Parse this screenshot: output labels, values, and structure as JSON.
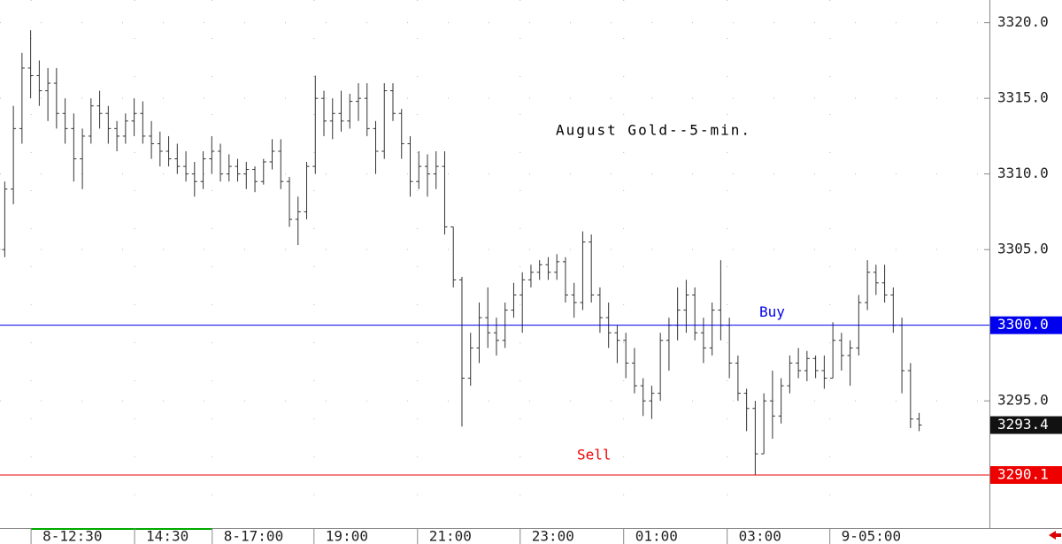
{
  "chart_data": {
    "type": "ohlc",
    "title": "August Gold--5-min.",
    "color": "#333333",
    "grid": true,
    "ylim": [
      3287,
      3321.5
    ],
    "yticks": [
      {
        "value": 3295,
        "label": "3295.0"
      },
      {
        "value": 3305,
        "label": "3305.0"
      },
      {
        "value": 3310,
        "label": "3310.0"
      },
      {
        "value": 3315,
        "label": "3315.0"
      },
      {
        "value": 3320,
        "label": "3320.0"
      }
    ],
    "xlim": [
      -0.5,
      114.2
    ],
    "xticks": [
      {
        "value": 3.1,
        "label": "8-12:30"
      },
      {
        "value": 15.1,
        "label": "14:30"
      },
      {
        "value": 24.1,
        "label": "8-17:00"
      },
      {
        "value": 35.9,
        "label": "19:00"
      },
      {
        "value": 47.9,
        "label": "21:00"
      },
      {
        "value": 59.8,
        "label": "23:00"
      },
      {
        "value": 71.8,
        "label": "01:00"
      },
      {
        "value": 83.8,
        "label": "03:00"
      },
      {
        "value": 95.7,
        "label": "9-05:00"
      }
    ],
    "levels": [
      {
        "name": "Buy",
        "value": 3300,
        "label": "3300.0",
        "color": "#0000ee"
      },
      {
        "name": "Sell",
        "value": 3290.1,
        "label": "3290.1",
        "color": "#ee0000"
      }
    ],
    "last": {
      "value": 3293.4,
      "label": "3293.4"
    },
    "ohlc": [
      [
        3305,
        3309.5,
        3304.5,
        3309
      ],
      [
        3309,
        3314.5,
        3308,
        3313
      ],
      [
        3313,
        3318,
        3312,
        3317
      ],
      [
        3317,
        3319.5,
        3315,
        3316.5
      ],
      [
        3316.5,
        3317.5,
        3314.5,
        3315.5
      ],
      [
        3315.5,
        3317,
        3313.5,
        3316
      ],
      [
        3316,
        3317,
        3313,
        3314
      ],
      [
        3314,
        3315,
        3312,
        3313
      ],
      [
        3313,
        3314,
        3309.5,
        3311
      ],
      [
        3311,
        3313,
        3309,
        3312.5
      ],
      [
        3312.5,
        3315,
        3312,
        3314.5
      ],
      [
        3314.5,
        3315.5,
        3313,
        3314
      ],
      [
        3314,
        3314.5,
        3312,
        3313
      ],
      [
        3313,
        3313.5,
        3311.5,
        3312.5
      ],
      [
        3312.5,
        3314,
        3312,
        3313.5
      ],
      [
        3313.5,
        3315,
        3312.5,
        3314
      ],
      [
        3314,
        3314.8,
        3312,
        3312.5
      ],
      [
        3312.5,
        3313.5,
        3311,
        3312
      ],
      [
        3312,
        3312.8,
        3310.5,
        3311.5
      ],
      [
        3311.5,
        3312.5,
        3310.5,
        3311
      ],
      [
        3311,
        3312,
        3310,
        3310.5
      ],
      [
        3310.5,
        3311.5,
        3309.5,
        3310
      ],
      [
        3310,
        3310.8,
        3308.5,
        3309.5
      ],
      [
        3309.5,
        3311.5,
        3309,
        3311
      ],
      [
        3311,
        3312.5,
        3310,
        3311.5
      ],
      [
        3311.5,
        3312,
        3309.5,
        3310
      ],
      [
        3310,
        3311.3,
        3309.5,
        3310.5
      ],
      [
        3310.5,
        3311,
        3309.5,
        3310
      ],
      [
        3310,
        3310.8,
        3309,
        3310.3
      ],
      [
        3310.3,
        3310.5,
        3308.8,
        3309.5
      ],
      [
        3309.5,
        3311,
        3309.3,
        3310.8
      ],
      [
        3310.8,
        3312.3,
        3310.3,
        3311.5
      ],
      [
        3311.5,
        3312.3,
        3309,
        3309.5
      ],
      [
        3309.5,
        3309.8,
        3306.5,
        3307
      ],
      [
        3307,
        3308.5,
        3305.3,
        3307.5
      ],
      [
        3307.5,
        3310.8,
        3307,
        3310.5
      ],
      [
        3310.5,
        3316.5,
        3310,
        3315
      ],
      [
        3315,
        3315.5,
        3312.5,
        3313.5
      ],
      [
        3313.5,
        3315,
        3312.3,
        3314
      ],
      [
        3314,
        3315.5,
        3312.8,
        3313.5
      ],
      [
        3313.5,
        3315.3,
        3313,
        3314.8
      ],
      [
        3314.8,
        3316,
        3313.5,
        3315
      ],
      [
        3315,
        3316,
        3312.5,
        3313
      ],
      [
        3313,
        3313.5,
        3310,
        3311.5
      ],
      [
        3311.5,
        3316,
        3311,
        3315.5
      ],
      [
        3315.5,
        3316,
        3313.5,
        3314
      ],
      [
        3314,
        3314.3,
        3311,
        3312
      ],
      [
        3312,
        3312.5,
        3308.5,
        3309.5
      ],
      [
        3309.5,
        3311.5,
        3309,
        3310.5
      ],
      [
        3310.5,
        3311.3,
        3308.5,
        3310
      ],
      [
        3310,
        3311.5,
        3309,
        3310.5
      ],
      [
        3310.5,
        3311.5,
        3306,
        3306.5
      ],
      [
        3306.5,
        3306.5,
        3302.5,
        3303
      ],
      [
        3303,
        3303.2,
        3293.3,
        3296.5
      ],
      [
        3296.5,
        3299.5,
        3296,
        3298.5
      ],
      [
        3298.5,
        3301.5,
        3297.5,
        3300.5
      ],
      [
        3300.5,
        3302.5,
        3298.5,
        3299.5
      ],
      [
        3299.5,
        3300.5,
        3298,
        3299
      ],
      [
        3299,
        3301.5,
        3298.5,
        3301
      ],
      [
        3301,
        3302.8,
        3300.5,
        3302
      ],
      [
        3302,
        3303.5,
        3299.5,
        3303
      ],
      [
        3303,
        3304,
        3302.5,
        3303.5
      ],
      [
        3303.5,
        3304.3,
        3303,
        3304
      ],
      [
        3304,
        3304.5,
        3303,
        3303.5
      ],
      [
        3303.5,
        3304.7,
        3303,
        3304.2
      ],
      [
        3304.2,
        3304.5,
        3301.5,
        3302
      ],
      [
        3302,
        3302.8,
        3300.5,
        3301.5
      ],
      [
        3301.5,
        3306.2,
        3301,
        3305.5
      ],
      [
        3305.5,
        3306,
        3301.5,
        3302
      ],
      [
        3302,
        3302.5,
        3299.5,
        3300.5
      ],
      [
        3300.5,
        3301.5,
        3298.5,
        3299.5
      ],
      [
        3299.5,
        3300,
        3297.5,
        3299
      ],
      [
        3299,
        3299.5,
        3296.5,
        3297.5
      ],
      [
        3297.5,
        3298.5,
        3295.5,
        3296
      ],
      [
        3296,
        3296.5,
        3294,
        3295
      ],
      [
        3295,
        3296,
        3293.8,
        3295.5
      ],
      [
        3295.5,
        3299.5,
        3295,
        3299
      ],
      [
        3299,
        3300.5,
        3297,
        3300
      ],
      [
        3300,
        3302.5,
        3299,
        3301
      ],
      [
        3301,
        3303,
        3299.5,
        3302
      ],
      [
        3302,
        3302.5,
        3299,
        3299.5
      ],
      [
        3299.5,
        3300.5,
        3297.5,
        3298.5
      ],
      [
        3298.5,
        3301.5,
        3298,
        3301
      ],
      [
        3301,
        3304.3,
        3299,
        3300
      ],
      [
        3300,
        3300.5,
        3296.5,
        3297.5
      ],
      [
        3297.5,
        3298,
        3295,
        3295.5
      ],
      [
        3295.5,
        3295.8,
        3293,
        3294.5
      ],
      [
        3294.5,
        3295,
        3290.1,
        3291.5
      ],
      [
        3291.5,
        3295.5,
        3291.5,
        3295
      ],
      [
        3295,
        3297,
        3292.5,
        3294
      ],
      [
        3294,
        3296.5,
        3293.5,
        3296
      ],
      [
        3296,
        3298,
        3295.5,
        3297.5
      ],
      [
        3297.5,
        3298.5,
        3296.5,
        3297
      ],
      [
        3297,
        3298.3,
        3296.3,
        3297.8
      ],
      [
        3297.8,
        3298,
        3296.5,
        3297
      ],
      [
        3297,
        3298,
        3295.8,
        3296.5
      ],
      [
        3296.5,
        3300.2,
        3296.5,
        3299
      ],
      [
        3299,
        3299.5,
        3297,
        3298
      ],
      [
        3298,
        3299,
        3296,
        3298.5
      ],
      [
        3298.5,
        3302,
        3298,
        3301.5
      ],
      [
        3301.5,
        3304.3,
        3301,
        3303.5
      ],
      [
        3303.5,
        3304,
        3302,
        3302.8
      ],
      [
        3302.8,
        3304,
        3301.5,
        3302
      ],
      [
        3302,
        3302.5,
        3299.5,
        3300
      ],
      [
        3300,
        3300.5,
        3295.5,
        3297
      ],
      [
        3297,
        3297.5,
        3293.2,
        3293.8
      ],
      [
        3293.8,
        3294.2,
        3293,
        3293.4
      ]
    ]
  }
}
